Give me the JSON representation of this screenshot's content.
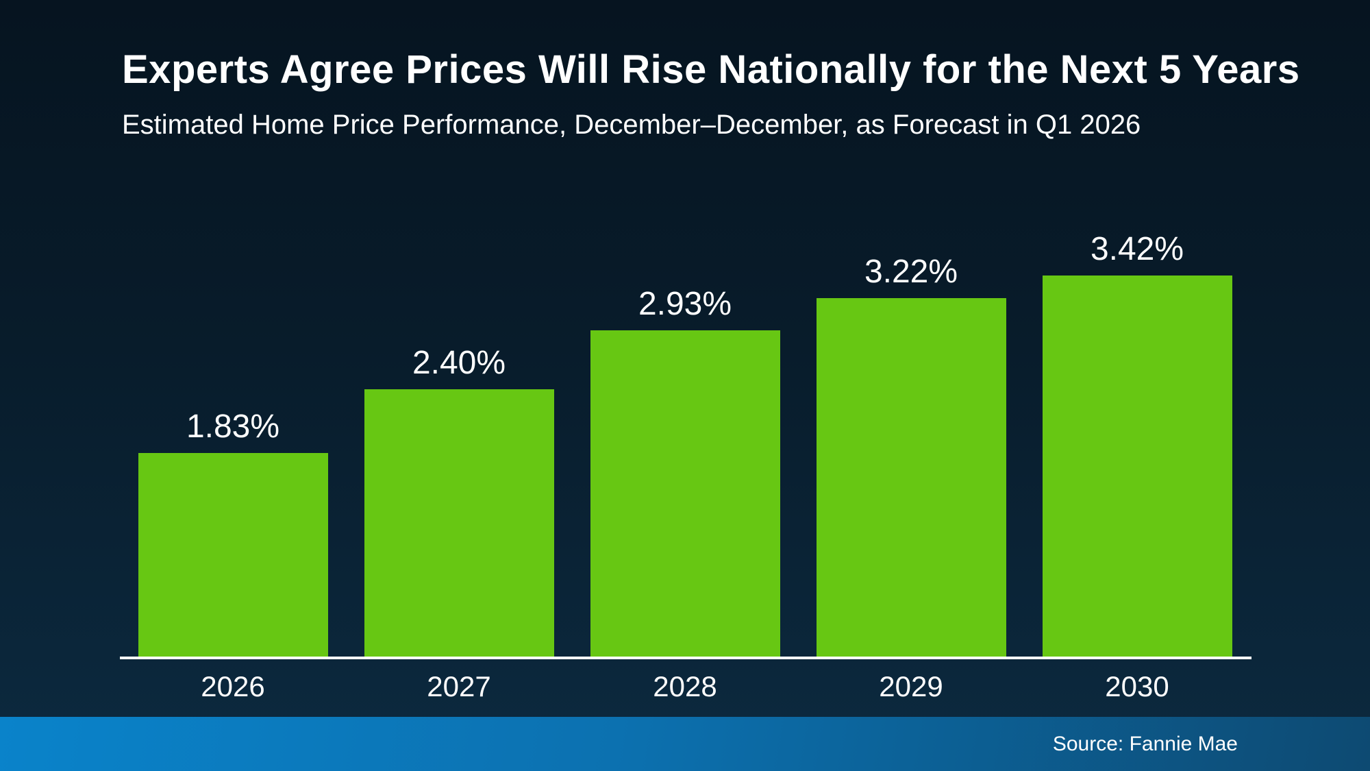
{
  "slide": {
    "title": "Experts Agree Prices Will Rise Nationally for the Next 5 Years",
    "subtitle": "Estimated Home Price Performance, December–December, as Forecast in Q1 2026",
    "source": "Source: Fannie Mae"
  },
  "colors": {
    "background_top": "#061420",
    "background_bottom": "#0c2a40",
    "bar_green": "#67c713",
    "axis_line": "#ffffff",
    "text": "#ffffff",
    "footer_blue_left": "#0a83ca",
    "footer_blue_right": "#0d4a72"
  },
  "chart_data": {
    "type": "bar",
    "title": "Experts Agree Prices Will Rise Nationally for the Next 5 Years",
    "subtitle": "Estimated Home Price Performance, December–December, as Forecast in Q1 2026",
    "categories": [
      "2026",
      "2027",
      "2028",
      "2029",
      "2030"
    ],
    "values": [
      1.83,
      2.4,
      2.93,
      3.22,
      3.42
    ],
    "value_labels": [
      "1.83%",
      "2.40%",
      "2.93%",
      "3.22%",
      "3.42%"
    ],
    "xlabel": "",
    "ylabel": "",
    "ylim": [
      0,
      3.42
    ],
    "grid": false,
    "legend": "none",
    "bar_color": "#67c713",
    "source": "Source: Fannie Mae"
  }
}
